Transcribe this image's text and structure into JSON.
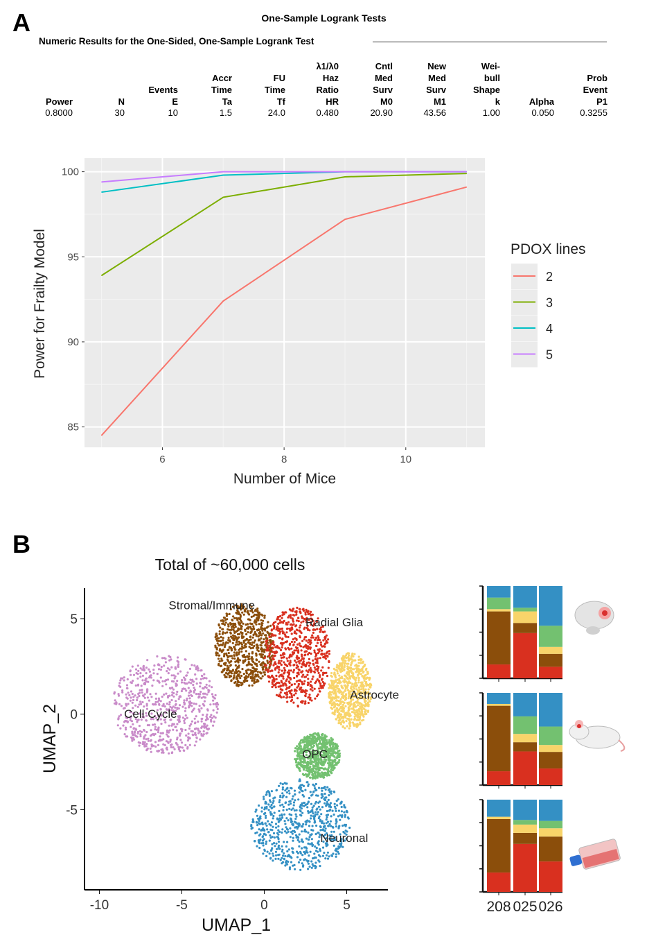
{
  "panel_a_letter": "A",
  "panel_b_letter": "B",
  "table": {
    "title": "One-Sample Logrank Tests",
    "subtitle": "Numeric Results for the One-Sided, One-Sample Logrank Test",
    "columns": [
      {
        "header": "Power",
        "value": "0.8000"
      },
      {
        "header": "N",
        "value": "30"
      },
      {
        "header": "Events\nE",
        "value": "10"
      },
      {
        "header": "Accr\nTime\nTa",
        "value": "1.5"
      },
      {
        "header": "FU\nTime\nTf",
        "value": "24.0"
      },
      {
        "header": "λ1/λ0\nHaz\nRatio\nHR",
        "value": "0.480"
      },
      {
        "header": "Cntl\nMed\nSurv\nM0",
        "value": "20.90"
      },
      {
        "header": "New\nMed\nSurv\nM1",
        "value": "43.56"
      },
      {
        "header": "Wei-\nbull\nShape\nk",
        "value": "1.00"
      },
      {
        "header": "Alpha",
        "value": "0.050"
      },
      {
        "header": "Prob\nEvent\nP1",
        "value": "0.3255"
      }
    ]
  },
  "chart_data": [
    {
      "type": "line",
      "xlabel": "Number of Mice",
      "ylabel": "Power for Frailty Model",
      "xlim": [
        4.72,
        11.3
      ],
      "ylim": [
        83.8,
        100.8
      ],
      "xticks": [
        "6",
        "8",
        "10"
      ],
      "yticks": [
        "85",
        "90",
        "95",
        "100"
      ],
      "grid": true,
      "legend": {
        "title": "PDOX lines",
        "placement": "right"
      },
      "x": [
        5,
        7,
        9,
        11
      ],
      "series": [
        {
          "name": "2",
          "color": "#f8766d",
          "values": [
            84.5,
            92.4,
            97.2,
            99.1
          ]
        },
        {
          "name": "3",
          "color": "#7cae00",
          "values": [
            93.9,
            98.5,
            99.7,
            99.9
          ]
        },
        {
          "name": "4",
          "color": "#00bfc4",
          "values": [
            98.8,
            99.8,
            100.0,
            100.0
          ]
        },
        {
          "name": "5",
          "color": "#c77cff",
          "values": [
            99.4,
            100.0,
            100.0,
            100.0
          ]
        }
      ]
    },
    {
      "type": "scatter",
      "title": "Total of ~60,000 cells",
      "xlabel": "UMAP_1",
      "ylabel": "UMAP_2",
      "xlim": [
        -10.9,
        7.5
      ],
      "ylim": [
        -9.2,
        6.6
      ],
      "xticks": [
        "-10",
        "-5",
        "0",
        "5"
      ],
      "yticks": [
        "-5",
        "0",
        "5"
      ],
      "clusters": [
        {
          "label": "Cell Cycle",
          "color": "#c98bc9",
          "center": [
            -6,
            0.5
          ],
          "spread": [
            3.2,
            2.6
          ]
        },
        {
          "label": "Stromal/Immune",
          "color": "#8b4e0b",
          "center": [
            -1.2,
            3.6
          ],
          "spread": [
            1.8,
            2.2
          ]
        },
        {
          "label": "Radial Glia",
          "color": "#d9301f",
          "center": [
            2.0,
            3.0
          ],
          "spread": [
            2.0,
            2.6
          ]
        },
        {
          "label": "Astrocyte",
          "color": "#f8d46a",
          "center": [
            5.2,
            1.2
          ],
          "spread": [
            1.3,
            2.0
          ]
        },
        {
          "label": "OPC",
          "color": "#73c170",
          "center": [
            3.2,
            -2.2
          ],
          "spread": [
            1.4,
            1.2
          ]
        },
        {
          "label": "Neuronal",
          "color": "#3490c4",
          "center": [
            2.2,
            -5.8
          ],
          "spread": [
            3.0,
            2.4
          ]
        }
      ]
    },
    {
      "type": "bar",
      "stacked": true,
      "categories": [
        "208",
        "025",
        "026"
      ],
      "stack_colors": [
        "#d9301f",
        "#8b4e0b",
        "#f8d46a",
        "#73c170",
        "#3490c4"
      ],
      "panels": [
        {
          "icon": "brain-icon",
          "values": [
            [
              0.15,
              0.575,
              0.025,
              0.125,
              0.125
            ],
            [
              0.49,
              0.11,
              0.125,
              0.04,
              0.235
            ],
            [
              0.125,
              0.14,
              0.075,
              0.23,
              0.43
            ]
          ]
        },
        {
          "icon": "mouse-icon",
          "values": [
            [
              0.15,
              0.71,
              0.02,
              0.0,
              0.12
            ],
            [
              0.365,
              0.1,
              0.09,
              0.19,
              0.255
            ],
            [
              0.18,
              0.18,
              0.075,
              0.2,
              0.365
            ]
          ]
        },
        {
          "icon": "culture-flask-icon",
          "values": [
            [
              0.21,
              0.58,
              0.025,
              0.0,
              0.185
            ],
            [
              0.52,
              0.12,
              0.09,
              0.05,
              0.22
            ],
            [
              0.33,
              0.27,
              0.09,
              0.08,
              0.23
            ]
          ]
        }
      ]
    }
  ]
}
